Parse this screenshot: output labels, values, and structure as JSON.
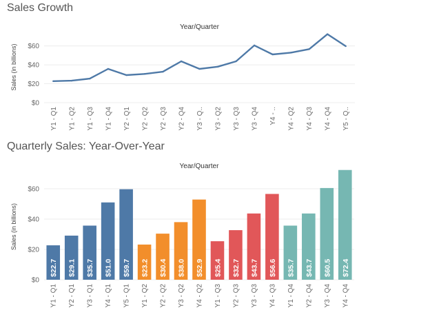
{
  "chart_data": [
    {
      "type": "line",
      "title": "Sales Growth",
      "xlabel": "Year/Quarter",
      "ylabel": "Sales (in billions)",
      "ylim": [
        0,
        75
      ],
      "yticks": [
        0,
        20,
        40,
        60
      ],
      "ytick_labels": [
        "$0",
        "$20",
        "$40",
        "$60"
      ],
      "categories": [
        "Y1 - Q1",
        "Y1 - Q2",
        "Y1 - Q3",
        "Y1 - Q4",
        "Y2 - Q1",
        "Y2 - Q2",
        "Y2 - Q3",
        "Y2 - Q4",
        "Y3 - Q..",
        "Y3 - Q2",
        "Y3 - Q3",
        "Y3 - Q4",
        "Y4 - ..",
        "Y4 - Q2",
        "Y4 - Q3",
        "Y4 - Q4",
        "Y5 - Q.."
      ],
      "values": [
        22.7,
        23.2,
        25.4,
        35.7,
        29.1,
        30.4,
        32.7,
        43.7,
        35.7,
        38.0,
        43.7,
        60.5,
        51.0,
        52.9,
        56.6,
        72.4,
        59.7
      ],
      "color": "#4e79a7",
      "grid": true
    },
    {
      "type": "bar",
      "title": "Quarterly Sales: Year-Over-Year",
      "xlabel": "Year/Quarter",
      "ylabel": "Sales (in billions)",
      "ylim": [
        0,
        70
      ],
      "yticks": [
        0,
        20,
        40,
        60
      ],
      "ytick_labels": [
        "$0",
        "$20",
        "$40",
        "$60"
      ],
      "categories": [
        "Y1 - Q1",
        "Y2 - Q1",
        "Y3 - Q1",
        "Y4 - Q1",
        "Y5 - Q1",
        "Y1 - Q2",
        "Y2 - Q2",
        "Y3 - Q2",
        "Y4 - Q2",
        "Y1 - Q3",
        "Y2 - Q3",
        "Y3 - Q3",
        "Y4 - Q3",
        "Y1 - Q4",
        "Y2 - Q4",
        "Y3 - Q4",
        "Y4 - Q4"
      ],
      "values": [
        22.7,
        29.1,
        35.7,
        51.0,
        59.7,
        23.2,
        30.4,
        38.0,
        52.9,
        25.4,
        32.7,
        43.7,
        56.6,
        35.7,
        43.7,
        60.5,
        72.4
      ],
      "data_labels": [
        "$22.7",
        "$29.1",
        "$35.7",
        "$51.0",
        "$59.7",
        "$23.2",
        "$30.4",
        "$38.0",
        "$52.9",
        "$25.4",
        "$32.7",
        "$43.7",
        "$56.6",
        "$35.7",
        "$43.7",
        "$60.5",
        "$72.4"
      ],
      "colors": [
        "#4e79a7",
        "#4e79a7",
        "#4e79a7",
        "#4e79a7",
        "#4e79a7",
        "#f28e2b",
        "#f28e2b",
        "#f28e2b",
        "#f28e2b",
        "#e15759",
        "#e15759",
        "#e15759",
        "#e15759",
        "#76b7b2",
        "#76b7b2",
        "#76b7b2",
        "#76b7b2"
      ],
      "grid": true
    }
  ]
}
